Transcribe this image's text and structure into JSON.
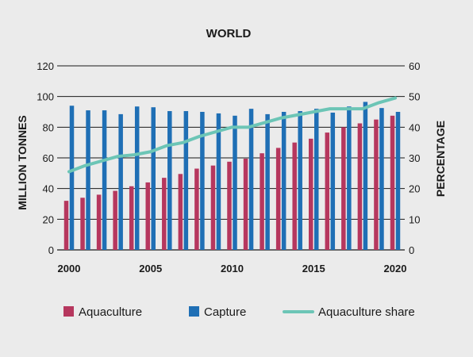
{
  "chart_data": {
    "type": "bar",
    "title": "WORLD",
    "ylabel": "MILLION TONNES",
    "y2label": "PERCENTAGE",
    "ylim": [
      0,
      120
    ],
    "y2lim": [
      0,
      60
    ],
    "yticks": [
      "0",
      "20",
      "40",
      "60",
      "80",
      "100",
      "120"
    ],
    "y2ticks": [
      "0",
      "10",
      "20",
      "30",
      "40",
      "50",
      "60"
    ],
    "xtick_labels": [
      "2000",
      "2005",
      "2010",
      "2015",
      "2020"
    ],
    "categories": [
      2000,
      2001,
      2002,
      2003,
      2004,
      2005,
      2006,
      2007,
      2008,
      2009,
      2010,
      2011,
      2012,
      2013,
      2014,
      2015,
      2016,
      2017,
      2018,
      2019,
      2020
    ],
    "series": [
      {
        "name": "Aquaculture",
        "type": "bar",
        "color": "#b6375e",
        "values": [
          32,
          34,
          36,
          38.5,
          41.5,
          44,
          47,
          49.5,
          53,
          55,
          57.5,
          59.5,
          63,
          66.5,
          70,
          72.5,
          76.5,
          80,
          82.5,
          85,
          87.5
        ]
      },
      {
        "name": "Capture",
        "type": "bar",
        "color": "#1f6fb5",
        "values": [
          94,
          91,
          91,
          88.5,
          93.5,
          93,
          90.5,
          90.5,
          90,
          89,
          87.5,
          92,
          88.5,
          90,
          90.5,
          92,
          89.5,
          93.5,
          96.5,
          92.5,
          90
        ]
      },
      {
        "name": "Aquaculture share",
        "type": "line",
        "axis": "right",
        "color": "#6cc5b6",
        "values": [
          25.5,
          27.5,
          29,
          30.5,
          31,
          32,
          34,
          35,
          37,
          38.5,
          40,
          40,
          41.5,
          43,
          44,
          45,
          46,
          46,
          46,
          48,
          49.5
        ]
      }
    ],
    "legend": [
      "Aquaculture",
      "Capture",
      "Aquaculture share"
    ],
    "legend_position": "bottom",
    "grid": false
  }
}
